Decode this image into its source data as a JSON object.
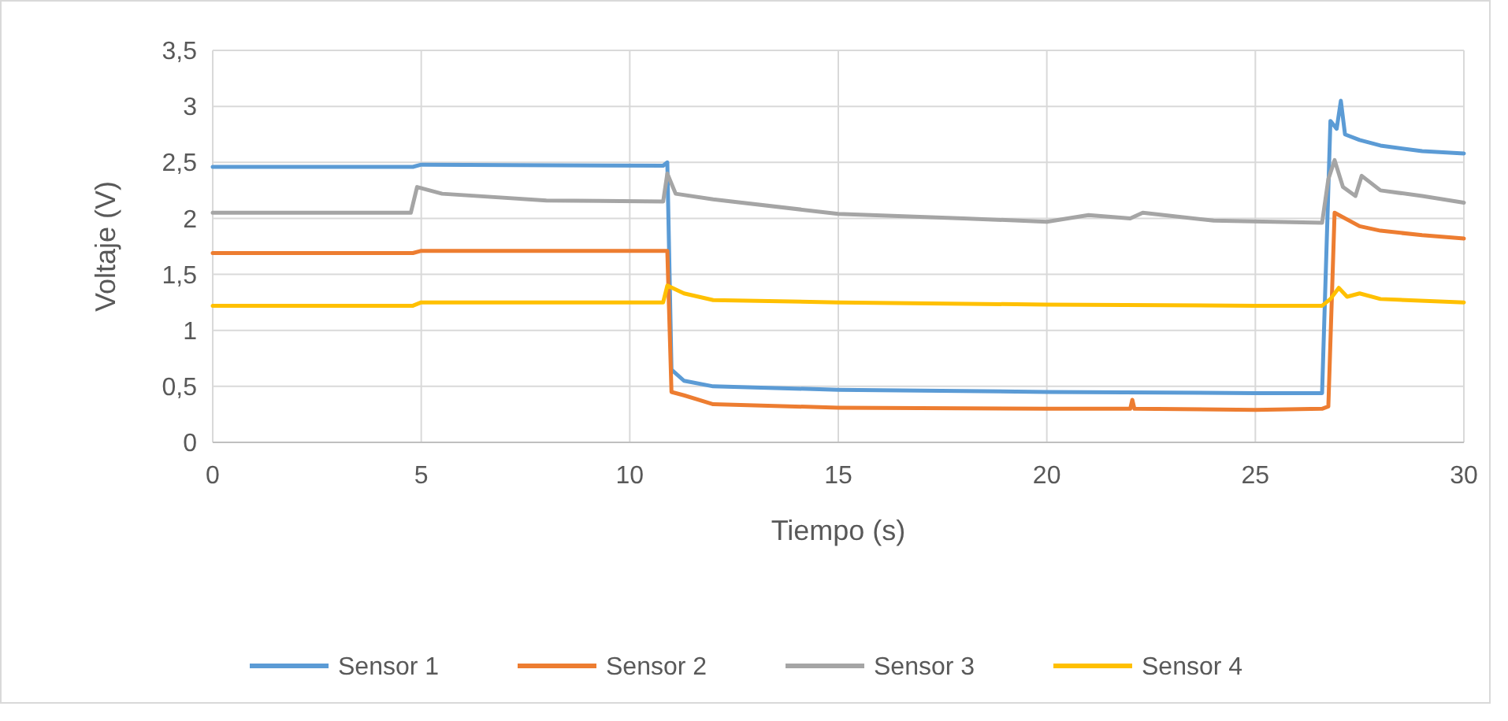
{
  "chart_data": {
    "type": "line",
    "xlabel": "Tiempo (s)",
    "ylabel": "Voltaje (V)",
    "xlim": [
      0,
      30
    ],
    "xticks": [
      0,
      5,
      10,
      15,
      20,
      25,
      30
    ],
    "ylim": [
      0,
      3.5
    ],
    "yticks": [
      0,
      {
        "value": 0.5,
        "label": "0,5"
      },
      1,
      {
        "value": 1.5,
        "label": "1,5"
      },
      2,
      {
        "value": 2.5,
        "label": "2,5"
      },
      3,
      {
        "value": 3.5,
        "label": "3,5"
      }
    ],
    "grid": true,
    "legend": "bottom",
    "marker": "none",
    "line_style": "solid",
    "series": [
      {
        "name": "Sensor 1",
        "color": "#5b9bd5",
        "x": [
          0,
          4.8,
          5,
          10.8,
          10.9,
          11.0,
          11.3,
          12,
          15,
          20,
          25,
          26.6,
          26.8,
          26.95,
          27.05,
          27.15,
          27.5,
          28,
          29,
          30
        ],
        "values": [
          2.46,
          2.46,
          2.48,
          2.47,
          2.5,
          0.65,
          0.55,
          0.5,
          0.47,
          0.45,
          0.44,
          0.44,
          2.87,
          2.8,
          3.05,
          2.75,
          2.7,
          2.65,
          2.6,
          2.58
        ]
      },
      {
        "name": "Sensor 2",
        "color": "#ed7d31",
        "x": [
          0,
          4.8,
          5,
          10.8,
          10.9,
          11.0,
          11.3,
          12,
          15,
          20,
          22,
          22.05,
          22.1,
          25,
          26.6,
          26.75,
          26.9,
          27.5,
          28,
          29,
          30
        ],
        "values": [
          1.69,
          1.69,
          1.71,
          1.71,
          1.71,
          0.45,
          0.42,
          0.34,
          0.31,
          0.3,
          0.3,
          0.38,
          0.3,
          0.29,
          0.3,
          0.32,
          2.05,
          1.93,
          1.89,
          1.85,
          1.82
        ]
      },
      {
        "name": "Sensor 3",
        "color": "#a5a5a5",
        "x": [
          0,
          4.75,
          4.9,
          5.5,
          8,
          10.8,
          10.9,
          11.1,
          12,
          15,
          18,
          20,
          21,
          22,
          22.3,
          24,
          26.6,
          26.75,
          26.9,
          27.1,
          27.4,
          27.55,
          28,
          29,
          30
        ],
        "values": [
          2.05,
          2.05,
          2.28,
          2.22,
          2.16,
          2.15,
          2.4,
          2.22,
          2.17,
          2.04,
          2.0,
          1.97,
          2.03,
          2.0,
          2.05,
          1.98,
          1.96,
          2.35,
          2.52,
          2.28,
          2.2,
          2.38,
          2.25,
          2.2,
          2.14
        ]
      },
      {
        "name": "Sensor 4",
        "color": "#ffc000",
        "x": [
          0,
          4.8,
          5,
          10.8,
          10.9,
          11.3,
          12,
          15,
          20,
          25,
          26.6,
          26.8,
          27,
          27.2,
          27.5,
          28,
          30
        ],
        "values": [
          1.22,
          1.22,
          1.25,
          1.25,
          1.4,
          1.33,
          1.27,
          1.25,
          1.23,
          1.22,
          1.22,
          1.28,
          1.38,
          1.3,
          1.33,
          1.28,
          1.25
        ]
      }
    ]
  }
}
